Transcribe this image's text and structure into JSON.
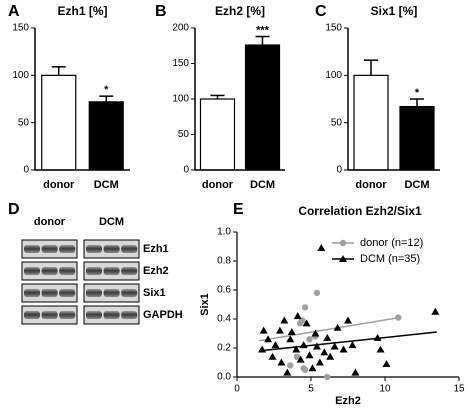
{
  "chart_data": [
    {
      "type": "bar",
      "panel": "A",
      "title": "Ezh1 [%]",
      "categories": [
        "donor",
        "DCM"
      ],
      "values": [
        100,
        72
      ],
      "errors": [
        9,
        6
      ],
      "colors": [
        "#ffffff",
        "#000000"
      ],
      "significance": [
        null,
        "*"
      ],
      "ylim": [
        0,
        150
      ],
      "yticks": [
        0,
        50,
        100,
        150
      ]
    },
    {
      "type": "bar",
      "panel": "B",
      "title": "Ezh2 [%]",
      "categories": [
        "donor",
        "DCM"
      ],
      "values": [
        100,
        176
      ],
      "errors": [
        5,
        12
      ],
      "colors": [
        "#ffffff",
        "#000000"
      ],
      "significance": [
        null,
        "***"
      ],
      "ylim": [
        0,
        200
      ],
      "yticks": [
        0,
        50,
        100,
        150,
        200
      ]
    },
    {
      "type": "bar",
      "panel": "C",
      "title": "Six1 [%]",
      "categories": [
        "donor",
        "DCM"
      ],
      "values": [
        100,
        67
      ],
      "errors": [
        16,
        8
      ],
      "colors": [
        "#ffffff",
        "#000000"
      ],
      "significance": [
        null,
        "*"
      ],
      "ylim": [
        0,
        150
      ],
      "yticks": [
        0,
        50,
        100,
        150
      ]
    },
    {
      "type": "scatter",
      "panel": "E",
      "title": "Correlation Ezh2/Six1",
      "x_label": "Ezh2",
      "y_label": "Six1",
      "xlim": [
        0,
        15
      ],
      "xticks": [
        0,
        5,
        10,
        15
      ],
      "ylim": [
        0,
        1
      ],
      "yticks": [
        {
          "value": 0,
          "label": "0.0"
        },
        0.2,
        0.4,
        0.6,
        0.8,
        {
          "value": 1,
          "label": "1.0"
        }
      ],
      "legend": "top-right",
      "series": [
        {
          "name": "donor (n=12)",
          "color": "#a0a0a0",
          "marker": "circle",
          "x": [
            4.26,
            4.4,
            4.6,
            5.4,
            5.3,
            4.5,
            4.6,
            6.1,
            10.9,
            4.05,
            3.6,
            4.9
          ],
          "values": [
            0.37,
            0.39,
            0.48,
            0.58,
            0.28,
            0.06,
            0.05,
            0.0,
            0.41,
            0.14,
            0.08,
            0.26
          ],
          "trend": {
            "x": [
              1.5,
              11
            ],
            "y": [
              0.25,
              0.41
            ]
          }
        },
        {
          "name": "DCM (n=35)",
          "color": "#000000",
          "marker": "triangle",
          "x": [
            1.7,
            1.8,
            2.1,
            2.4,
            2.6,
            2.9,
            3.0,
            3.2,
            3.4,
            3.6,
            3.7,
            4.0,
            4.1,
            4.3,
            4.5,
            4.7,
            4.9,
            5.1,
            5.3,
            5.4,
            5.6,
            5.7,
            5.9,
            6.1,
            6.3,
            6.6,
            6.8,
            7.2,
            7.5,
            7.8,
            8.0,
            9.5,
            9.7,
            10.1,
            13.4
          ],
          "values": [
            0.19,
            0.32,
            0.26,
            0.14,
            0.22,
            0.32,
            0.1,
            0.39,
            0.03,
            0.26,
            0.31,
            0.19,
            0.42,
            0.12,
            0.22,
            0.37,
            0.15,
            0.06,
            0.3,
            0.21,
            0.1,
            0.89,
            0.17,
            0.27,
            0.14,
            0.21,
            0.34,
            0.19,
            0.39,
            0.22,
            0.03,
            0.27,
            0.19,
            0.09,
            0.45
          ],
          "trend": {
            "x": [
              1.5,
              13.5
            ],
            "y": [
              0.18,
              0.31
            ]
          }
        }
      ]
    }
  ],
  "blot": {
    "panel": "D",
    "columns": [
      "donor",
      "DCM"
    ],
    "rows": [
      "Ezh1",
      "Ezh2",
      "Six1",
      "GAPDH"
    ]
  }
}
